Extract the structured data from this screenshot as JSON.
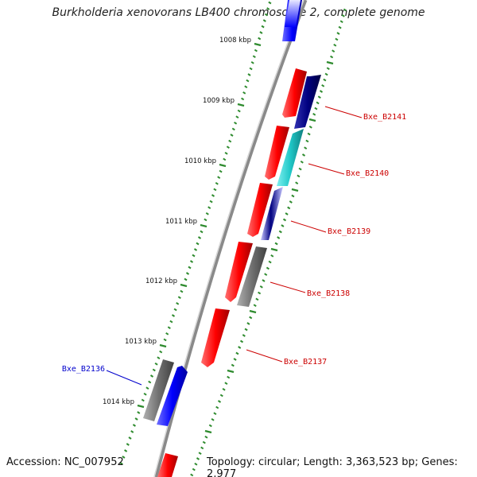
{
  "title": "Burkholderia xenovorans LB400 chromosome 2, complete genome",
  "footer": {
    "accession": "Accession: NC_007952",
    "summary": "Topology: circular; Length: 3,363,523 bp; Genes: 2,977"
  },
  "colors": {
    "backbone": "#8a8a8a",
    "tick": "#2e8b2e",
    "forward_gene": "#ff0000",
    "reverse_gene_dark": "#000080",
    "reverse_gene_cyan": "#20c8c8",
    "reverse_gene_blue": "#0000ff",
    "pseudo_gene": "#707070",
    "label_red": "#cc0000",
    "label_blue": "#0000cc"
  },
  "ticks": [
    {
      "label": "1008 kbp"
    },
    {
      "label": "1009 kbp"
    },
    {
      "label": "1010 kbp"
    },
    {
      "label": "1011 kbp"
    },
    {
      "label": "1012 kbp"
    },
    {
      "label": "1013 kbp"
    },
    {
      "label": "1014 kbp"
    }
  ],
  "gene_labels": [
    {
      "text": "Bxe_B2141",
      "color": "red"
    },
    {
      "text": "Bxe_B2140",
      "color": "red"
    },
    {
      "text": "Bxe_B2139",
      "color": "red"
    },
    {
      "text": "Bxe_B2138",
      "color": "red"
    },
    {
      "text": "Bxe_B2137",
      "color": "red"
    },
    {
      "text": "Bxe_B2136",
      "color": "blue"
    }
  ]
}
